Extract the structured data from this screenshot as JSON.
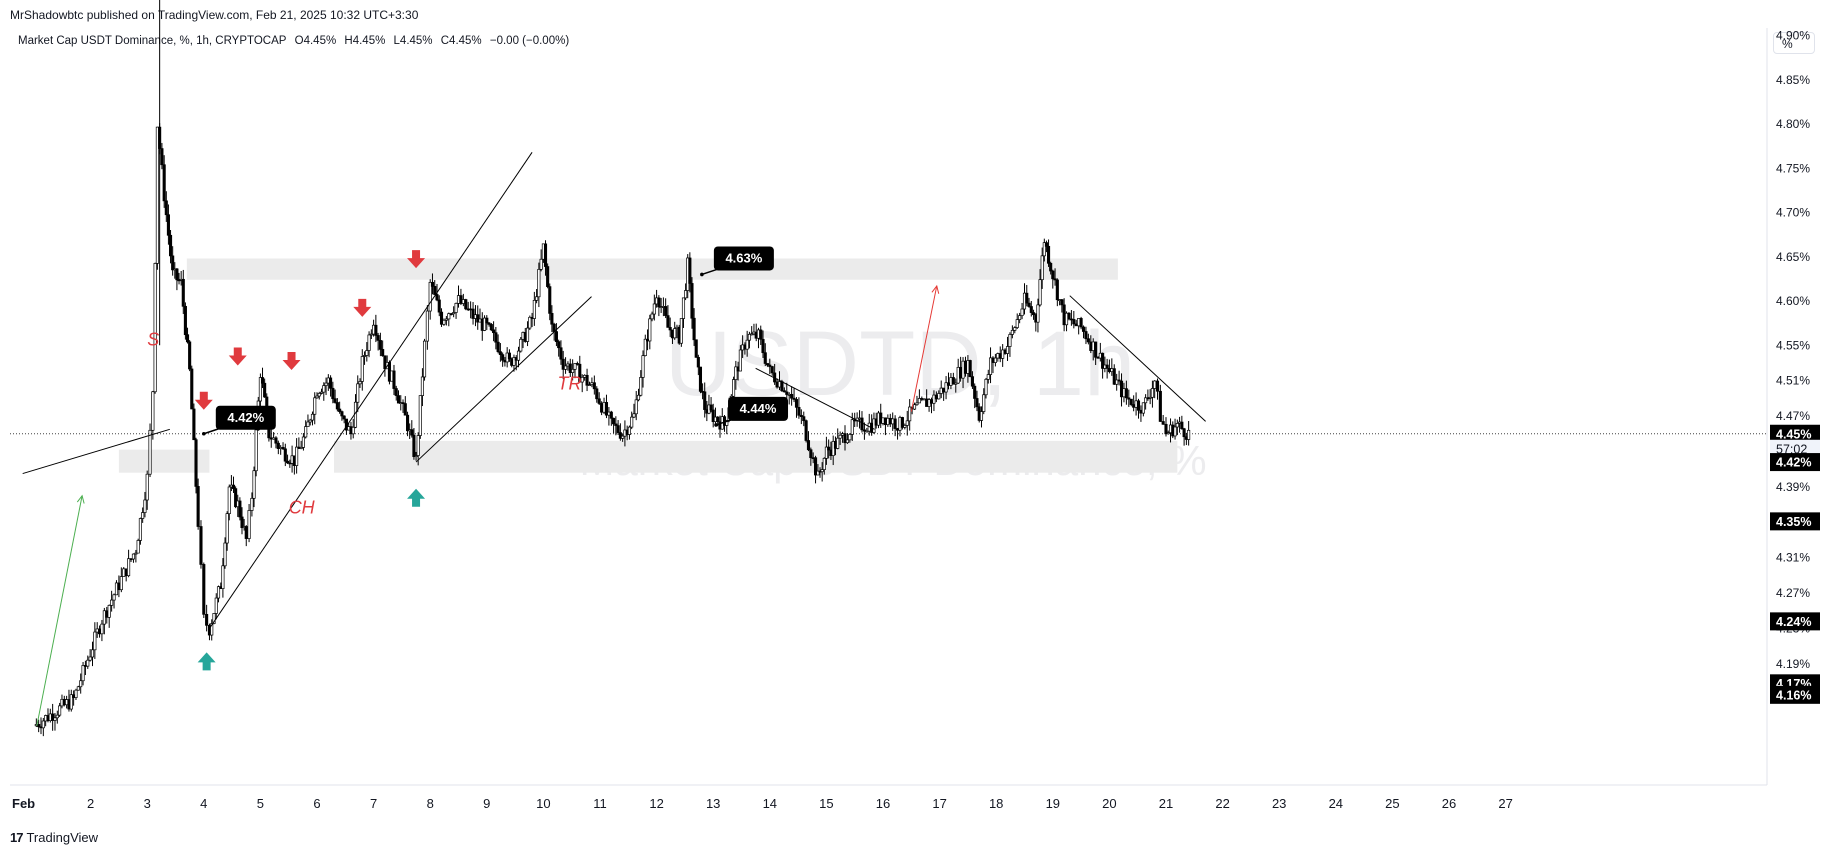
{
  "header": {
    "publisher": "MrShadowbtc published on TradingView.com, Feb 21, 2025 10:32 UTC+3:30",
    "symbol": "Market Cap USDT Dominance, %, 1h, CRYPTOCAP",
    "open": "O4.45%",
    "high": "H4.45%",
    "low": "L4.45%",
    "close": "C4.45%",
    "change": "−0.00 (−0.00%)"
  },
  "scale_button": "%",
  "watermark": {
    "ticker": "USDTD, 1h",
    "name": "Market Cap USDT Dominance, %"
  },
  "footer": {
    "logo": "17",
    "brand": "TradingView"
  },
  "colors": {
    "up": "#26a69a",
    "down": "#e03a3e",
    "candle": "#000000",
    "zone": "#ebebeb"
  },
  "chart_data": {
    "type": "candlestick",
    "title": "Market Cap USDT Dominance, %, 1h, CRYPTOCAP",
    "x_ticks": [
      "Feb",
      "2",
      "3",
      "4",
      "5",
      "6",
      "7",
      "8",
      "9",
      "10",
      "11",
      "12",
      "13",
      "14",
      "15",
      "16",
      "17",
      "18",
      "19",
      "20",
      "21",
      "22",
      "23",
      "24",
      "25",
      "26",
      "27"
    ],
    "y_ticks": [
      "4.90%",
      "4.85%",
      "4.80%",
      "4.75%",
      "4.70%",
      "4.65%",
      "4.60%",
      "4.55%",
      "4.51%",
      "4.47%",
      "4.39%",
      "4.31%",
      "4.27%",
      "4.23%",
      "4.19%"
    ],
    "ylim": [
      4.13,
      4.95
    ],
    "price_path": [
      [
        1.0,
        4.12
      ],
      [
        1.7,
        4.15
      ],
      [
        2.2,
        4.24
      ],
      [
        2.8,
        4.32
      ],
      [
        3.0,
        4.4
      ],
      [
        3.1,
        4.5
      ],
      [
        3.18,
        4.8
      ],
      [
        3.3,
        4.72
      ],
      [
        3.45,
        4.63
      ],
      [
        3.6,
        4.62
      ],
      [
        3.75,
        4.52
      ],
      [
        3.9,
        4.35
      ],
      [
        4.0,
        4.24
      ],
      [
        4.1,
        4.23
      ],
      [
        4.3,
        4.28
      ],
      [
        4.45,
        4.39
      ],
      [
        4.6,
        4.37
      ],
      [
        4.75,
        4.33
      ],
      [
        4.85,
        4.38
      ],
      [
        5.0,
        4.52
      ],
      [
        5.15,
        4.45
      ],
      [
        5.4,
        4.43
      ],
      [
        5.6,
        4.42
      ],
      [
        5.8,
        4.45
      ],
      [
        6.0,
        4.5
      ],
      [
        6.2,
        4.51
      ],
      [
        6.4,
        4.47
      ],
      [
        6.6,
        4.45
      ],
      [
        6.8,
        4.53
      ],
      [
        7.0,
        4.58
      ],
      [
        7.2,
        4.53
      ],
      [
        7.4,
        4.5
      ],
      [
        7.6,
        4.46
      ],
      [
        7.75,
        4.42
      ],
      [
        7.9,
        4.55
      ],
      [
        8.0,
        4.62
      ],
      [
        8.2,
        4.58
      ],
      [
        8.5,
        4.6
      ],
      [
        8.8,
        4.58
      ],
      [
        9.0,
        4.57
      ],
      [
        9.2,
        4.55
      ],
      [
        9.4,
        4.53
      ],
      [
        9.6,
        4.55
      ],
      [
        9.8,
        4.58
      ],
      [
        10.0,
        4.66
      ],
      [
        10.15,
        4.57
      ],
      [
        10.35,
        4.53
      ],
      [
        10.6,
        4.52
      ],
      [
        10.9,
        4.5
      ],
      [
        11.2,
        4.46
      ],
      [
        11.4,
        4.45
      ],
      [
        11.6,
        4.47
      ],
      [
        11.8,
        4.55
      ],
      [
        12.0,
        4.61
      ],
      [
        12.2,
        4.57
      ],
      [
        12.4,
        4.56
      ],
      [
        12.55,
        4.64
      ],
      [
        12.7,
        4.53
      ],
      [
        12.85,
        4.48
      ],
      [
        13.0,
        4.47
      ],
      [
        13.2,
        4.46
      ],
      [
        13.4,
        4.52
      ],
      [
        13.6,
        4.56
      ],
      [
        13.8,
        4.56
      ],
      [
        14.0,
        4.52
      ],
      [
        14.3,
        4.5
      ],
      [
        14.6,
        4.46
      ],
      [
        14.85,
        4.4
      ],
      [
        15.0,
        4.43
      ],
      [
        15.2,
        4.44
      ],
      [
        15.5,
        4.46
      ],
      [
        15.8,
        4.46
      ],
      [
        16.0,
        4.47
      ],
      [
        16.3,
        4.46
      ],
      [
        16.6,
        4.48
      ],
      [
        16.9,
        4.49
      ],
      [
        17.2,
        4.51
      ],
      [
        17.5,
        4.53
      ],
      [
        17.7,
        4.47
      ],
      [
        17.9,
        4.53
      ],
      [
        18.2,
        4.55
      ],
      [
        18.5,
        4.6
      ],
      [
        18.7,
        4.58
      ],
      [
        18.85,
        4.67
      ],
      [
        19.0,
        4.63
      ],
      [
        19.2,
        4.58
      ],
      [
        19.5,
        4.57
      ],
      [
        19.8,
        4.54
      ],
      [
        20.0,
        4.52
      ],
      [
        20.3,
        4.49
      ],
      [
        20.6,
        4.48
      ],
      [
        20.8,
        4.51
      ],
      [
        20.9,
        4.47
      ],
      [
        21.0,
        4.45
      ],
      [
        21.2,
        4.46
      ],
      [
        21.4,
        4.45
      ]
    ],
    "price_labels": [
      {
        "value": 4.45,
        "text": "4.45%",
        "style": "dark"
      },
      {
        "value": 4.433,
        "text": "57:02",
        "style": "light"
      },
      {
        "value": 4.418,
        "text": "4.42%",
        "style": "dark"
      },
      {
        "value": 4.351,
        "text": "4.35%",
        "style": "dark"
      },
      {
        "value": 4.238,
        "text": "4.24%",
        "style": "dark"
      },
      {
        "value": 4.168,
        "text": "4.17%",
        "style": "dark"
      },
      {
        "value": 4.155,
        "text": "4.16%",
        "style": "dark"
      }
    ],
    "callouts": [
      {
        "text": "4.42%",
        "x": 4.0,
        "y": 4.45
      },
      {
        "text": "4.63%",
        "x": 12.8,
        "y": 4.63
      },
      {
        "text": "4.44%",
        "x": 13.05,
        "y": 4.46
      }
    ],
    "annotations": [
      {
        "text": "S",
        "x": 3.0,
        "y": 4.55
      },
      {
        "text": "CH",
        "x": 5.5,
        "y": 4.36
      },
      {
        "text": "TR",
        "x": 10.25,
        "y": 4.5
      }
    ],
    "zones": [
      {
        "x0": 3.7,
        "x1": 20.15,
        "y0": 4.624,
        "y1": 4.648
      },
      {
        "x0": 2.5,
        "x1": 4.1,
        "y0": 4.406,
        "y1": 4.432
      },
      {
        "x0": 6.3,
        "x1": 21.2,
        "y0": 4.406,
        "y1": 4.442
      }
    ],
    "trendlines": [
      {
        "x0": 0.8,
        "y0": 4.405,
        "x1": 3.4,
        "y1": 4.455
      },
      {
        "x0": 4.1,
        "y0": 4.23,
        "x1": 9.8,
        "y1": 4.768
      },
      {
        "x0": 7.75,
        "y0": 4.418,
        "x1": 10.85,
        "y1": 4.605
      },
      {
        "x0": 13.75,
        "y0": 4.524,
        "x1": 15.85,
        "y1": 4.455
      },
      {
        "x0": 19.3,
        "y0": 4.606,
        "x1": 21.7,
        "y1": 4.464
      }
    ],
    "signal_arrows": [
      {
        "x": 4.0,
        "y": 4.485,
        "dir": "down"
      },
      {
        "x": 4.6,
        "y": 4.535,
        "dir": "down"
      },
      {
        "x": 5.55,
        "y": 4.53,
        "dir": "down"
      },
      {
        "x": 6.8,
        "y": 4.59,
        "dir": "down"
      },
      {
        "x": 7.75,
        "y": 4.645,
        "dir": "down"
      },
      {
        "x": 4.05,
        "y": 4.195,
        "dir": "up"
      },
      {
        "x": 7.75,
        "y": 4.38,
        "dir": "up"
      }
    ],
    "bias_arrows": [
      {
        "x0": 1.05,
        "y0": 4.12,
        "x1": 1.85,
        "y1": 4.38,
        "color": "green"
      },
      {
        "x0": 16.5,
        "y0": 4.475,
        "x1": 16.95,
        "y1": 4.617,
        "color": "red"
      }
    ],
    "last_price": 4.45,
    "grid": false,
    "legend": "top-left"
  }
}
